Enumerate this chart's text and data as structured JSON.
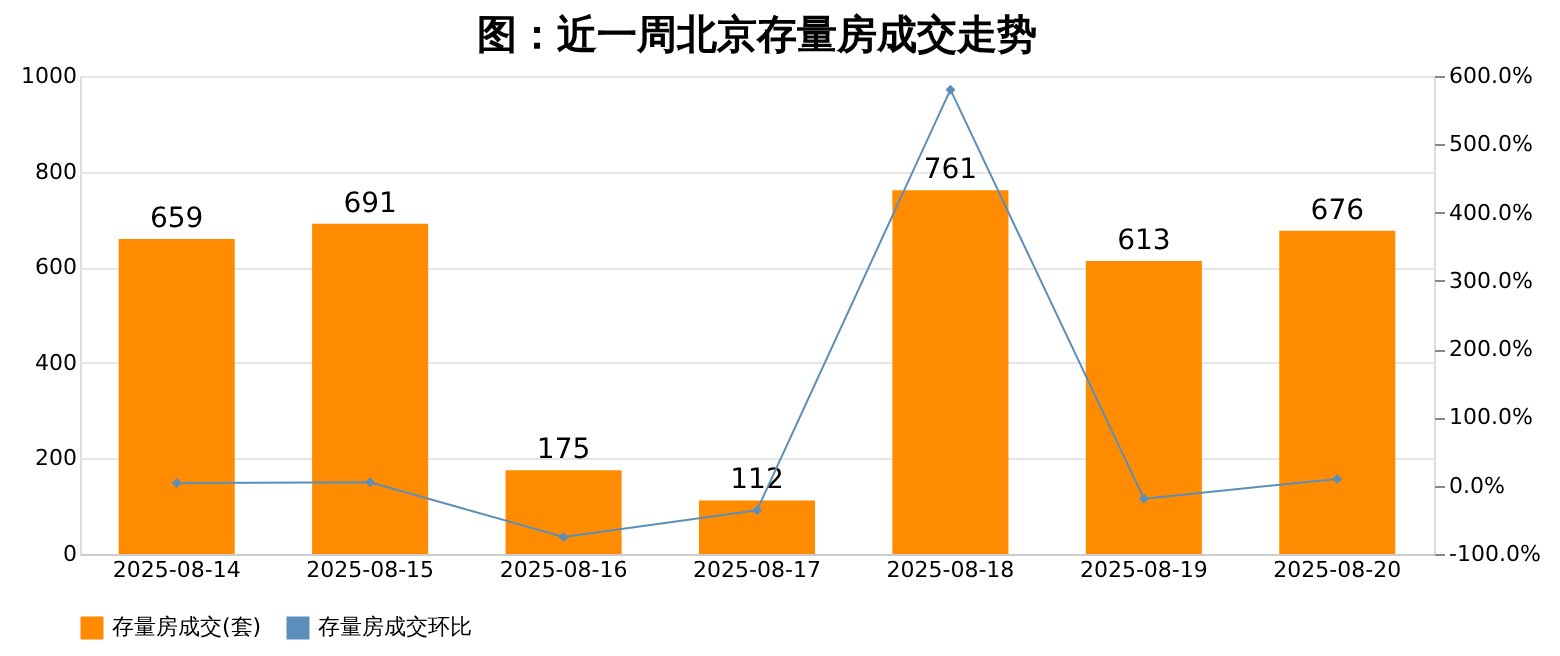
{
  "chart_data": {
    "type": "bar",
    "title": "图：近一周北京存量房成交走势",
    "categories": [
      "2025-08-14",
      "2025-08-15",
      "2025-08-16",
      "2025-08-17",
      "2025-08-18",
      "2025-08-19",
      "2025-08-20"
    ],
    "series": [
      {
        "name": "存量房成交(套)",
        "color": "#ff8c00",
        "values": [
          659,
          691,
          175,
          112,
          761,
          613,
          676
        ],
        "value_labels": [
          "659",
          "691",
          "175",
          "112",
          "761",
          "613",
          "676"
        ]
      },
      {
        "name": "存量房成交环比",
        "type": "line",
        "axis": "y2",
        "color": "#5b8fb9",
        "marker": "diamond",
        "values": [
          4,
          5,
          -75,
          -36,
          580,
          -19,
          10
        ]
      }
    ],
    "ylim": [
      0,
      1000
    ],
    "yticks": [
      0,
      200,
      400,
      600,
      800,
      1000
    ],
    "y2lim": [
      -100,
      600
    ],
    "y2ticks": [
      {
        "value": -100,
        "label": "-100.0%"
      },
      {
        "value": 0,
        "label": "0.0%"
      },
      {
        "value": 100,
        "label": "100.0%"
      },
      {
        "value": 200,
        "label": "200.0%"
      },
      {
        "value": 300,
        "label": "300.0%"
      },
      {
        "value": 400,
        "label": "400.0%"
      },
      {
        "value": 500,
        "label": "500.0%"
      },
      {
        "value": 600,
        "label": "600.0%"
      }
    ],
    "grid": "y",
    "legend": "bottom"
  }
}
